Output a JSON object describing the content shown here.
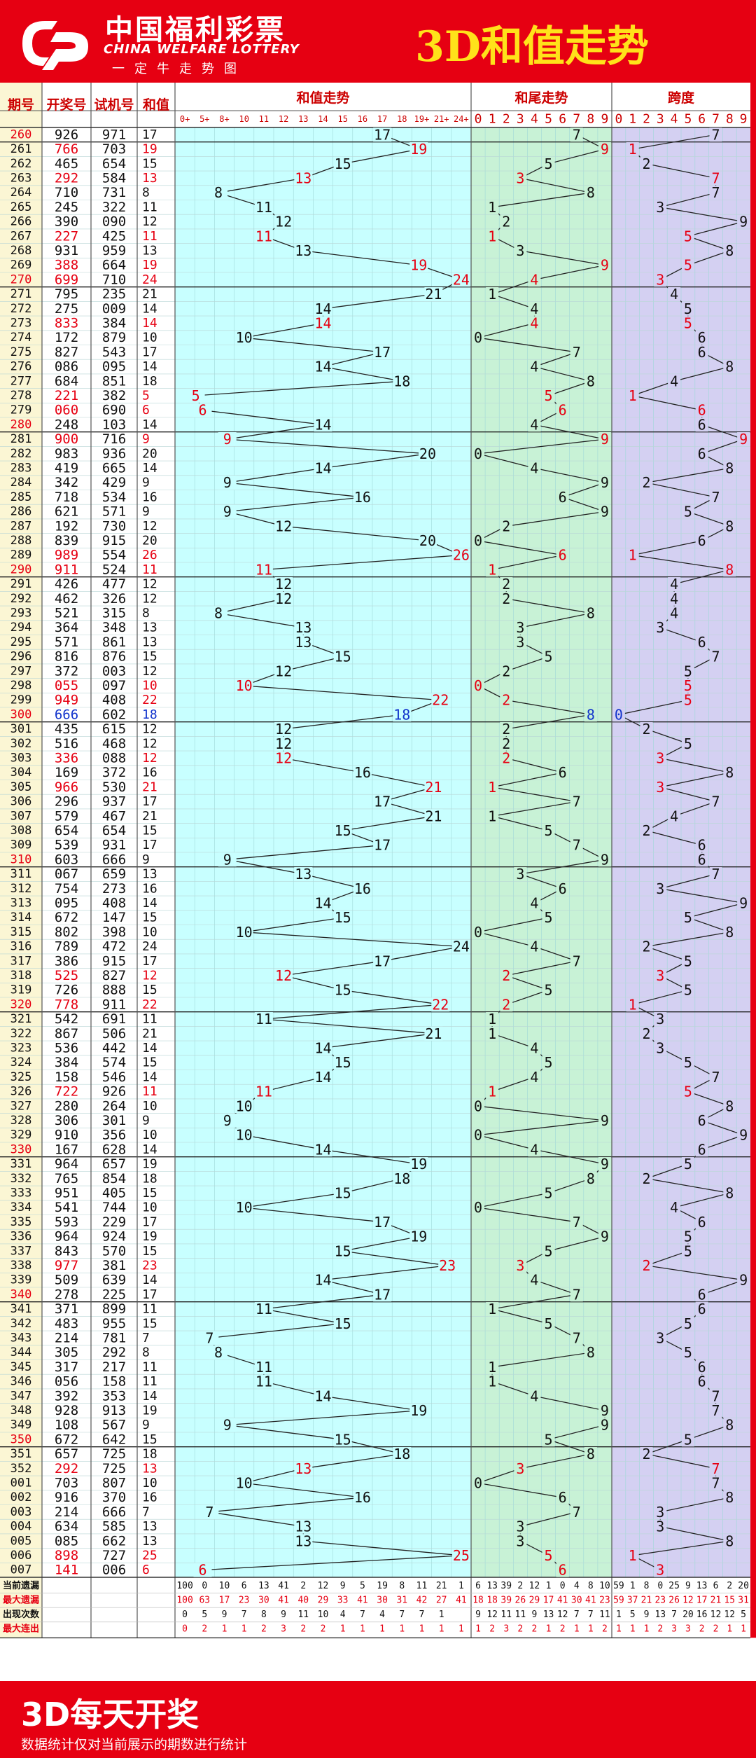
{
  "header": {
    "logo_cn": "中国福利彩票",
    "logo_en": "CHINA WELFARE LOTTERY",
    "logo_slogan": "一定牛走势图",
    "title": "3D和值走势"
  },
  "table": {
    "col_headers": [
      "期号",
      "开奖号",
      "试机号",
      "和值"
    ],
    "section_titles": [
      "和值走势",
      "和尾走势",
      "跨度"
    ],
    "sum_bins": [
      "0+",
      "5+",
      "8+",
      "10",
      "11",
      "12",
      "13",
      "14",
      "15",
      "16",
      "17",
      "18",
      "19+",
      "21+",
      "24+"
    ],
    "digit_bins": [
      "0",
      "1",
      "2",
      "3",
      "4",
      "5",
      "6",
      "7",
      "8",
      "9"
    ]
  },
  "chart_data": {
    "type": "table",
    "title": "3D和值走势",
    "rows": [
      {
        "issue": "260",
        "draw": "926",
        "test": "971",
        "sum": 17,
        "tail": 7,
        "span": 7,
        "hl": 0
      },
      {
        "issue": "261",
        "draw": "766",
        "test": "703",
        "sum": 19,
        "tail": 9,
        "span": 1,
        "hl": 1
      },
      {
        "issue": "262",
        "draw": "465",
        "test": "654",
        "sum": 15,
        "tail": 5,
        "span": 2,
        "hl": 0
      },
      {
        "issue": "263",
        "draw": "292",
        "test": "584",
        "sum": 13,
        "tail": 3,
        "span": 7,
        "hl": 1
      },
      {
        "issue": "264",
        "draw": "710",
        "test": "731",
        "sum": 8,
        "tail": 8,
        "span": 7,
        "hl": 0
      },
      {
        "issue": "265",
        "draw": "245",
        "test": "322",
        "sum": 11,
        "tail": 1,
        "span": 3,
        "hl": 0
      },
      {
        "issue": "266",
        "draw": "390",
        "test": "090",
        "sum": 12,
        "tail": 2,
        "span": 9,
        "hl": 0
      },
      {
        "issue": "267",
        "draw": "227",
        "test": "425",
        "sum": 11,
        "tail": 1,
        "span": 5,
        "hl": 1
      },
      {
        "issue": "268",
        "draw": "931",
        "test": "959",
        "sum": 13,
        "tail": 3,
        "span": 8,
        "hl": 0
      },
      {
        "issue": "269",
        "draw": "388",
        "test": "664",
        "sum": 19,
        "tail": 9,
        "span": 5,
        "hl": 1
      },
      {
        "issue": "270",
        "draw": "699",
        "test": "710",
        "sum": 24,
        "tail": 4,
        "span": 3,
        "hl": 1
      },
      {
        "issue": "271",
        "draw": "795",
        "test": "235",
        "sum": 21,
        "tail": 1,
        "span": 4,
        "hl": 0
      },
      {
        "issue": "272",
        "draw": "275",
        "test": "009",
        "sum": 14,
        "tail": 4,
        "span": 5,
        "hl": 0
      },
      {
        "issue": "273",
        "draw": "833",
        "test": "384",
        "sum": 14,
        "tail": 4,
        "span": 5,
        "hl": 1
      },
      {
        "issue": "274",
        "draw": "172",
        "test": "879",
        "sum": 10,
        "tail": 0,
        "span": 6,
        "hl": 0
      },
      {
        "issue": "275",
        "draw": "827",
        "test": "543",
        "sum": 17,
        "tail": 7,
        "span": 6,
        "hl": 0
      },
      {
        "issue": "276",
        "draw": "086",
        "test": "095",
        "sum": 14,
        "tail": 4,
        "span": 8,
        "hl": 0
      },
      {
        "issue": "277",
        "draw": "684",
        "test": "851",
        "sum": 18,
        "tail": 8,
        "span": 4,
        "hl": 0
      },
      {
        "issue": "278",
        "draw": "221",
        "test": "382",
        "sum": 5,
        "tail": 5,
        "span": 1,
        "hl": 1
      },
      {
        "issue": "279",
        "draw": "060",
        "test": "690",
        "sum": 6,
        "tail": 6,
        "span": 6,
        "hl": 1
      },
      {
        "issue": "280",
        "draw": "248",
        "test": "103",
        "sum": 14,
        "tail": 4,
        "span": 6,
        "hl": 0
      },
      {
        "issue": "281",
        "draw": "900",
        "test": "716",
        "sum": 9,
        "tail": 9,
        "span": 9,
        "hl": 1
      },
      {
        "issue": "282",
        "draw": "983",
        "test": "936",
        "sum": 20,
        "tail": 0,
        "span": 6,
        "hl": 0
      },
      {
        "issue": "283",
        "draw": "419",
        "test": "665",
        "sum": 14,
        "tail": 4,
        "span": 8,
        "hl": 0
      },
      {
        "issue": "284",
        "draw": "342",
        "test": "429",
        "sum": 9,
        "tail": 9,
        "span": 2,
        "hl": 0
      },
      {
        "issue": "285",
        "draw": "718",
        "test": "534",
        "sum": 16,
        "tail": 6,
        "span": 7,
        "hl": 0
      },
      {
        "issue": "286",
        "draw": "621",
        "test": "571",
        "sum": 9,
        "tail": 9,
        "span": 5,
        "hl": 0
      },
      {
        "issue": "287",
        "draw": "192",
        "test": "730",
        "sum": 12,
        "tail": 2,
        "span": 8,
        "hl": 0
      },
      {
        "issue": "288",
        "draw": "839",
        "test": "915",
        "sum": 20,
        "tail": 0,
        "span": 6,
        "hl": 0
      },
      {
        "issue": "289",
        "draw": "989",
        "test": "554",
        "sum": 26,
        "tail": 6,
        "span": 1,
        "hl": 1
      },
      {
        "issue": "290",
        "draw": "911",
        "test": "524",
        "sum": 11,
        "tail": 1,
        "span": 8,
        "hl": 1
      },
      {
        "issue": "291",
        "draw": "426",
        "test": "477",
        "sum": 12,
        "tail": 2,
        "span": 4,
        "hl": 0
      },
      {
        "issue": "292",
        "draw": "462",
        "test": "326",
        "sum": 12,
        "tail": 2,
        "span": 4,
        "hl": 0
      },
      {
        "issue": "293",
        "draw": "521",
        "test": "315",
        "sum": 8,
        "tail": 8,
        "span": 4,
        "hl": 0
      },
      {
        "issue": "294",
        "draw": "364",
        "test": "348",
        "sum": 13,
        "tail": 3,
        "span": 3,
        "hl": 0
      },
      {
        "issue": "295",
        "draw": "571",
        "test": "861",
        "sum": 13,
        "tail": 3,
        "span": 6,
        "hl": 0
      },
      {
        "issue": "296",
        "draw": "816",
        "test": "876",
        "sum": 15,
        "tail": 5,
        "span": 7,
        "hl": 0
      },
      {
        "issue": "297",
        "draw": "372",
        "test": "003",
        "sum": 12,
        "tail": 2,
        "span": 5,
        "hl": 0
      },
      {
        "issue": "298",
        "draw": "055",
        "test": "097",
        "sum": 10,
        "tail": 0,
        "span": 5,
        "hl": 1
      },
      {
        "issue": "299",
        "draw": "949",
        "test": "408",
        "sum": 22,
        "tail": 2,
        "span": 5,
        "hl": 1
      },
      {
        "issue": "300",
        "draw": "666",
        "test": "602",
        "sum": 18,
        "tail": 8,
        "span": 0,
        "hl": 2
      },
      {
        "issue": "301",
        "draw": "435",
        "test": "615",
        "sum": 12,
        "tail": 2,
        "span": 2,
        "hl": 0
      },
      {
        "issue": "302",
        "draw": "516",
        "test": "468",
        "sum": 12,
        "tail": 2,
        "span": 5,
        "hl": 0
      },
      {
        "issue": "303",
        "draw": "336",
        "test": "088",
        "sum": 12,
        "tail": 2,
        "span": 3,
        "hl": 1
      },
      {
        "issue": "304",
        "draw": "169",
        "test": "372",
        "sum": 16,
        "tail": 6,
        "span": 8,
        "hl": 0
      },
      {
        "issue": "305",
        "draw": "966",
        "test": "530",
        "sum": 21,
        "tail": 1,
        "span": 3,
        "hl": 1
      },
      {
        "issue": "306",
        "draw": "296",
        "test": "937",
        "sum": 17,
        "tail": 7,
        "span": 7,
        "hl": 0
      },
      {
        "issue": "307",
        "draw": "579",
        "test": "467",
        "sum": 21,
        "tail": 1,
        "span": 4,
        "hl": 0
      },
      {
        "issue": "308",
        "draw": "654",
        "test": "654",
        "sum": 15,
        "tail": 5,
        "span": 2,
        "hl": 0
      },
      {
        "issue": "309",
        "draw": "539",
        "test": "931",
        "sum": 17,
        "tail": 7,
        "span": 6,
        "hl": 0
      },
      {
        "issue": "310",
        "draw": "603",
        "test": "666",
        "sum": 9,
        "tail": 9,
        "span": 6,
        "hl": 0
      },
      {
        "issue": "311",
        "draw": "067",
        "test": "659",
        "sum": 13,
        "tail": 3,
        "span": 7,
        "hl": 0
      },
      {
        "issue": "312",
        "draw": "754",
        "test": "273",
        "sum": 16,
        "tail": 6,
        "span": 3,
        "hl": 0
      },
      {
        "issue": "313",
        "draw": "095",
        "test": "408",
        "sum": 14,
        "tail": 4,
        "span": 9,
        "hl": 0
      },
      {
        "issue": "314",
        "draw": "672",
        "test": "147",
        "sum": 15,
        "tail": 5,
        "span": 5,
        "hl": 0
      },
      {
        "issue": "315",
        "draw": "802",
        "test": "398",
        "sum": 10,
        "tail": 0,
        "span": 8,
        "hl": 0
      },
      {
        "issue": "316",
        "draw": "789",
        "test": "472",
        "sum": 24,
        "tail": 4,
        "span": 2,
        "hl": 0
      },
      {
        "issue": "317",
        "draw": "386",
        "test": "915",
        "sum": 17,
        "tail": 7,
        "span": 5,
        "hl": 0
      },
      {
        "issue": "318",
        "draw": "525",
        "test": "827",
        "sum": 12,
        "tail": 2,
        "span": 3,
        "hl": 1
      },
      {
        "issue": "319",
        "draw": "726",
        "test": "888",
        "sum": 15,
        "tail": 5,
        "span": 5,
        "hl": 0
      },
      {
        "issue": "320",
        "draw": "778",
        "test": "911",
        "sum": 22,
        "tail": 2,
        "span": 1,
        "hl": 1
      },
      {
        "issue": "321",
        "draw": "542",
        "test": "691",
        "sum": 11,
        "tail": 1,
        "span": 3,
        "hl": 0
      },
      {
        "issue": "322",
        "draw": "867",
        "test": "506",
        "sum": 21,
        "tail": 1,
        "span": 2,
        "hl": 0
      },
      {
        "issue": "323",
        "draw": "536",
        "test": "442",
        "sum": 14,
        "tail": 4,
        "span": 3,
        "hl": 0
      },
      {
        "issue": "324",
        "draw": "384",
        "test": "574",
        "sum": 15,
        "tail": 5,
        "span": 5,
        "hl": 0
      },
      {
        "issue": "325",
        "draw": "158",
        "test": "546",
        "sum": 14,
        "tail": 4,
        "span": 7,
        "hl": 0
      },
      {
        "issue": "326",
        "draw": "722",
        "test": "926",
        "sum": 11,
        "tail": 1,
        "span": 5,
        "hl": 1
      },
      {
        "issue": "327",
        "draw": "280",
        "test": "264",
        "sum": 10,
        "tail": 0,
        "span": 8,
        "hl": 0
      },
      {
        "issue": "328",
        "draw": "306",
        "test": "301",
        "sum": 9,
        "tail": 9,
        "span": 6,
        "hl": 0
      },
      {
        "issue": "329",
        "draw": "910",
        "test": "356",
        "sum": 10,
        "tail": 0,
        "span": 9,
        "hl": 0
      },
      {
        "issue": "330",
        "draw": "167",
        "test": "628",
        "sum": 14,
        "tail": 4,
        "span": 6,
        "hl": 0
      },
      {
        "issue": "331",
        "draw": "964",
        "test": "657",
        "sum": 19,
        "tail": 9,
        "span": 5,
        "hl": 0
      },
      {
        "issue": "332",
        "draw": "765",
        "test": "854",
        "sum": 18,
        "tail": 8,
        "span": 2,
        "hl": 0
      },
      {
        "issue": "333",
        "draw": "951",
        "test": "405",
        "sum": 15,
        "tail": 5,
        "span": 8,
        "hl": 0
      },
      {
        "issue": "334",
        "draw": "541",
        "test": "744",
        "sum": 10,
        "tail": 0,
        "span": 4,
        "hl": 0
      },
      {
        "issue": "335",
        "draw": "593",
        "test": "229",
        "sum": 17,
        "tail": 7,
        "span": 6,
        "hl": 0
      },
      {
        "issue": "336",
        "draw": "964",
        "test": "924",
        "sum": 19,
        "tail": 9,
        "span": 5,
        "hl": 0
      },
      {
        "issue": "337",
        "draw": "843",
        "test": "570",
        "sum": 15,
        "tail": 5,
        "span": 5,
        "hl": 0
      },
      {
        "issue": "338",
        "draw": "977",
        "test": "381",
        "sum": 23,
        "tail": 3,
        "span": 2,
        "hl": 1
      },
      {
        "issue": "339",
        "draw": "509",
        "test": "639",
        "sum": 14,
        "tail": 4,
        "span": 9,
        "hl": 0
      },
      {
        "issue": "340",
        "draw": "278",
        "test": "225",
        "sum": 17,
        "tail": 7,
        "span": 6,
        "hl": 0
      },
      {
        "issue": "341",
        "draw": "371",
        "test": "899",
        "sum": 11,
        "tail": 1,
        "span": 6,
        "hl": 0
      },
      {
        "issue": "342",
        "draw": "483",
        "test": "955",
        "sum": 15,
        "tail": 5,
        "span": 5,
        "hl": 0
      },
      {
        "issue": "343",
        "draw": "214",
        "test": "781",
        "sum": 7,
        "tail": 7,
        "span": 3,
        "hl": 0
      },
      {
        "issue": "344",
        "draw": "305",
        "test": "292",
        "sum": 8,
        "tail": 8,
        "span": 5,
        "hl": 0
      },
      {
        "issue": "345",
        "draw": "317",
        "test": "217",
        "sum": 11,
        "tail": 1,
        "span": 6,
        "hl": 0
      },
      {
        "issue": "346",
        "draw": "056",
        "test": "158",
        "sum": 11,
        "tail": 1,
        "span": 6,
        "hl": 0
      },
      {
        "issue": "347",
        "draw": "392",
        "test": "353",
        "sum": 14,
        "tail": 4,
        "span": 7,
        "hl": 0
      },
      {
        "issue": "348",
        "draw": "928",
        "test": "913",
        "sum": 19,
        "tail": 9,
        "span": 7,
        "hl": 0
      },
      {
        "issue": "349",
        "draw": "108",
        "test": "567",
        "sum": 9,
        "tail": 9,
        "span": 8,
        "hl": 0
      },
      {
        "issue": "350",
        "draw": "672",
        "test": "642",
        "sum": 15,
        "tail": 5,
        "span": 5,
        "hl": 0
      },
      {
        "issue": "351",
        "draw": "657",
        "test": "725",
        "sum": 18,
        "tail": 8,
        "span": 2,
        "hl": 0
      },
      {
        "issue": "352",
        "draw": "292",
        "test": "725",
        "sum": 13,
        "tail": 3,
        "span": 7,
        "hl": 1
      },
      {
        "issue": "001",
        "draw": "703",
        "test": "807",
        "sum": 10,
        "tail": 0,
        "span": 7,
        "hl": 0
      },
      {
        "issue": "002",
        "draw": "916",
        "test": "370",
        "sum": 16,
        "tail": 6,
        "span": 8,
        "hl": 0
      },
      {
        "issue": "003",
        "draw": "214",
        "test": "666",
        "sum": 7,
        "tail": 7,
        "span": 3,
        "hl": 0
      },
      {
        "issue": "004",
        "draw": "634",
        "test": "585",
        "sum": 13,
        "tail": 3,
        "span": 3,
        "hl": 0
      },
      {
        "issue": "005",
        "draw": "085",
        "test": "662",
        "sum": 13,
        "tail": 3,
        "span": 8,
        "hl": 0
      },
      {
        "issue": "006",
        "draw": "898",
        "test": "727",
        "sum": 25,
        "tail": 5,
        "span": 1,
        "hl": 1
      },
      {
        "issue": "007",
        "draw": "141",
        "test": "006",
        "sum": 6,
        "tail": 6,
        "span": 3,
        "hl": 1
      }
    ],
    "stats_labels": [
      "当前遗漏",
      "最大遗漏",
      "出现次数",
      "最大连出"
    ],
    "stats": {
      "sum": [
        [
          "100",
          "0",
          "10",
          "6",
          "13",
          "41",
          "2",
          "12",
          "9",
          "5",
          "19",
          "8",
          "11",
          "21",
          "1"
        ],
        [
          "100",
          "63",
          "17",
          "23",
          "30",
          "41",
          "40",
          "29",
          "33",
          "41",
          "30",
          "31",
          "42",
          "27",
          "41"
        ],
        [
          "0",
          "5",
          "9",
          "7",
          "8",
          "9",
          "11",
          "10",
          "4",
          "7",
          "4",
          "7",
          "7",
          "1",
          ""
        ],
        [
          "0",
          "2",
          "1",
          "1",
          "2",
          "3",
          "2",
          "2",
          "1",
          "1",
          "1",
          "1",
          "1",
          "1",
          "1"
        ]
      ],
      "tail": [
        [
          "6",
          "13",
          "39",
          "2",
          "12",
          "1",
          "0",
          "4",
          "8",
          "10"
        ],
        [
          "18",
          "18",
          "39",
          "26",
          "29",
          "17",
          "41",
          "30",
          "41",
          "23"
        ],
        [
          "9",
          "12",
          "11",
          "11",
          "9",
          "13",
          "12",
          "7",
          "7",
          "11"
        ],
        [
          "1",
          "2",
          "3",
          "2",
          "2",
          "1",
          "2",
          "1",
          "1",
          "2"
        ]
      ],
      "span": [
        [
          "59",
          "1",
          "8",
          "0",
          "25",
          "9",
          "13",
          "6",
          "2",
          "20"
        ],
        [
          "59",
          "37",
          "21",
          "23",
          "26",
          "12",
          "17",
          "21",
          "15",
          "31"
        ],
        [
          "1",
          "5",
          "9",
          "13",
          "7",
          "20",
          "16",
          "12",
          "12",
          "5"
        ],
        [
          "1",
          "1",
          "1",
          "2",
          "3",
          "3",
          "2",
          "2",
          "1",
          "1"
        ]
      ]
    }
  },
  "colors": {
    "brand": "#e60012",
    "title": "#ffe21a",
    "sum_bg": "#c8ffff",
    "tail_bg": "#c8f2d6",
    "span_bg": "#d4d0f2",
    "issue_bg": "#fbf6d4",
    "highlight": "#e60012",
    "special": "#1133cc"
  },
  "footer": {
    "title": "3D每天开奖",
    "note": "数据统计仅对当前展示的期数进行统计"
  }
}
